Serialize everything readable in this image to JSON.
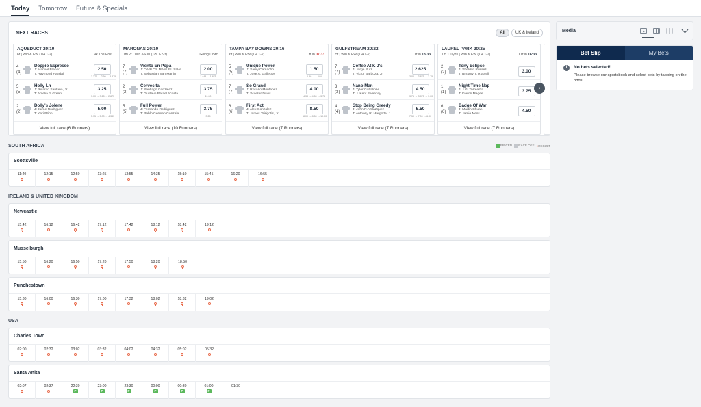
{
  "top_tabs": [
    "Today",
    "Tomorrow",
    "Future & Specials"
  ],
  "next_races": {
    "title": "NEXT RACES",
    "filters": [
      "All",
      "UK & Ireland"
    ],
    "view_full_prefix": "View full race",
    "races": [
      {
        "name": "AQUEDUCT 20:10",
        "info": "6f | Win & EW (1/4 1-2)",
        "status": "At The Post",
        "status_time": "",
        "view": "View full race (6 Runners)",
        "runners": [
          {
            "num": "4",
            "draw": "(4)",
            "name": "Doppio Espresso",
            "jockey": "J: Manuel Franco",
            "trainer": "T: Raymond Handal",
            "odds": "2.50",
            "hist": "3.375 → 2.50 → 3.375"
          },
          {
            "num": "5",
            "draw": "(5)",
            "name": "Holly Ln",
            "jockey": "J: Ricardo Santana, Jr.",
            "trainer": "T: Amelia J. Green",
            "odds": "3.25",
            "hist": "3.00 → 3.25 → 2.875"
          },
          {
            "num": "2",
            "draw": "(2)",
            "name": "Dolly's Jolene",
            "jockey": "J: Jaime Rodriguez",
            "trainer": "T: Keri Brion",
            "odds": "5.00",
            "hist": "5.75 → 5.00 → 4.333"
          }
        ]
      },
      {
        "name": "MARONAS 20:10",
        "info": "1m 2f | Win & EW (1/5 1-2-3)",
        "status": "Going Down",
        "status_time": "",
        "view": "View full race (10 Runners)",
        "runners": [
          {
            "num": "7",
            "draw": "(7)",
            "name": "Viento En Popa",
            "jockey": "J: CARLOS MANUEL SUAI",
            "trainer": "T: Sebastian San Martin",
            "odds": "2.00",
            "hist": "1.444 → 1.875"
          },
          {
            "num": "2",
            "draw": "(2)",
            "name": "Cervecita",
            "jockey": "J: Santiago Gonzalez",
            "trainer": "T: Gustavo Rafael Acosta",
            "odds": "3.75",
            "hist": "11.00"
          },
          {
            "num": "5",
            "draw": "(5)",
            "name": "Full Power",
            "jockey": "J: Fernando Rodriguez",
            "trainer": "T: Pablo German Gonzale",
            "odds": "3.75",
            "hist": "3.25"
          }
        ]
      },
      {
        "name": "TAMPA BAY DOWNS 20:16",
        "info": "6f | Win & EW (1/4 1-2)",
        "status": "Off in",
        "status_time": "07:33",
        "view": "View full race (7 Runners)",
        "runners": [
          {
            "num": "5",
            "draw": "(5)",
            "name": "Unique Power",
            "jockey": "J: Samy Camacho",
            "trainer": "T: Jose A. Gallegos",
            "odds": "1.50",
            "hist": "1.50 → 1.444"
          },
          {
            "num": "7",
            "draw": "(7)",
            "name": "So Grand",
            "jockey": "J: Rosario Montanez",
            "trainer": "T: Scooter Davis",
            "odds": "4.00",
            "hist": "4.33 → 4.50 → 3.75"
          },
          {
            "num": "6",
            "draw": "(6)",
            "name": "First Act",
            "jockey": "J: Alex Gonzalez",
            "trainer": "T: James Tsirigotis, Jr.",
            "odds": "8.50",
            "hist": "8.00 → 8.50 → 10.00"
          }
        ]
      },
      {
        "name": "GULFSTREAM 20:22",
        "info": "5f | Win & EW (1/4 1-2)",
        "status": "Off in",
        "status_time": "13:33",
        "view": "View full race (7 Runners)",
        "runners": [
          {
            "num": "7",
            "draw": "(7)",
            "name": "Coffee At K J's",
            "jockey": "J: Jorge Ruiz",
            "trainer": "T: Victor Barboza, Jr.",
            "odds": "2.625",
            "hist": "3.00 → 3.875 → 2.75"
          },
          {
            "num": "3",
            "draw": "(3)",
            "name": "Nano Man",
            "jockey": "J: Tyler Gaffalione",
            "trainer": "T: J. Kent Sweezey",
            "odds": "4.50",
            "hist": "3.75 → 3.875 → 3.00"
          },
          {
            "num": "4",
            "draw": "(4)",
            "name": "Stop Being Greedy",
            "jockey": "J: John R. Velazquez",
            "trainer": "T: Anthony R. Margotta, J",
            "odds": "5.50",
            "hist": "7.50 → 7.00 → 6.00"
          }
        ]
      },
      {
        "name": "LAUREL PARK 20:25",
        "info": "1m 110yds | Win & EW (1/4 1-2)",
        "status": "Off in",
        "status_time": "16:33",
        "view": "View full race (7 Runners)",
        "runners": [
          {
            "num": "2",
            "draw": "(2)",
            "name": "Tony Eclipse",
            "jockey": "J: Sheldon Russell",
            "trainer": "T: Brittany T. Russell",
            "odds": "3.00",
            "hist": ""
          },
          {
            "num": "1",
            "draw": "(1)",
            "name": "Night Time Nap",
            "jockey": "J: J.G. Torrealba",
            "trainer": "T: Kieron Magee",
            "odds": "3.75",
            "hist": ""
          },
          {
            "num": "6",
            "draw": "(6)",
            "name": "Badge Of War",
            "jockey": "J: Martin Chuan",
            "trainer": "T: Jamie Ness",
            "odds": "4.50",
            "hist": ""
          }
        ]
      }
    ]
  },
  "legend": {
    "priced": "PRICED",
    "race_off": "RACE OFF",
    "result": "RESULT"
  },
  "regions": [
    {
      "name": "SOUTH AFRICA",
      "show_legend": true,
      "meetings": [
        {
          "name": "Scottsville",
          "times": [
            {
              "t": "11:40",
              "s": "pin"
            },
            {
              "t": "12:15",
              "s": "pin"
            },
            {
              "t": "12:50",
              "s": "pin"
            },
            {
              "t": "13:25",
              "s": "pin"
            },
            {
              "t": "13:55",
              "s": "pin"
            },
            {
              "t": "14:35",
              "s": "pin"
            },
            {
              "t": "15:10",
              "s": "pin"
            },
            {
              "t": "15:45",
              "s": "pin"
            },
            {
              "t": "16:20",
              "s": "pin"
            },
            {
              "t": "16:55",
              "s": "pin"
            }
          ]
        }
      ]
    },
    {
      "name": "IRELAND & UNITED KINGDOM",
      "show_legend": false,
      "meetings": [
        {
          "name": "Newcastle",
          "times": [
            {
              "t": "15:42",
              "s": "pin"
            },
            {
              "t": "16:12",
              "s": "pin"
            },
            {
              "t": "16:42",
              "s": "pin"
            },
            {
              "t": "17:12",
              "s": "pin"
            },
            {
              "t": "17:42",
              "s": "pin"
            },
            {
              "t": "18:12",
              "s": "pin"
            },
            {
              "t": "18:42",
              "s": "pin"
            },
            {
              "t": "19:12",
              "s": "pin"
            }
          ]
        },
        {
          "name": "Musselburgh",
          "times": [
            {
              "t": "15:50",
              "s": "pin"
            },
            {
              "t": "16:20",
              "s": "pin"
            },
            {
              "t": "16:50",
              "s": "pin"
            },
            {
              "t": "17:20",
              "s": "pin"
            },
            {
              "t": "17:50",
              "s": "pin"
            },
            {
              "t": "18:20",
              "s": "pin"
            },
            {
              "t": "18:50",
              "s": "pin"
            }
          ]
        },
        {
          "name": "Punchestown",
          "times": [
            {
              "t": "15:30",
              "s": "pin"
            },
            {
              "t": "16:00",
              "s": "pin"
            },
            {
              "t": "16:30",
              "s": "pin"
            },
            {
              "t": "17:00",
              "s": "pin"
            },
            {
              "t": "17:32",
              "s": "pin"
            },
            {
              "t": "18:02",
              "s": "pin"
            },
            {
              "t": "18:32",
              "s": "pin"
            },
            {
              "t": "19:02",
              "s": "pin"
            }
          ]
        }
      ]
    },
    {
      "name": "USA",
      "show_legend": false,
      "meetings": [
        {
          "name": "Charles Town",
          "times": [
            {
              "t": "02:00",
              "s": "pin"
            },
            {
              "t": "02:32",
              "s": "pin"
            },
            {
              "t": "03:02",
              "s": "pin"
            },
            {
              "t": "03:32",
              "s": "pin"
            },
            {
              "t": "04:02",
              "s": "pin"
            },
            {
              "t": "04:32",
              "s": "pin"
            },
            {
              "t": "05:02",
              "s": "pin"
            },
            {
              "t": "05:32",
              "s": "pin"
            }
          ]
        },
        {
          "name": "Santa Anita",
          "times": [
            {
              "t": "02:07",
              "s": "pin"
            },
            {
              "t": "02:37",
              "s": "pin"
            },
            {
              "t": "22:30",
              "s": "priced"
            },
            {
              "t": "23:00",
              "s": "priced"
            },
            {
              "t": "23:30",
              "s": "priced"
            },
            {
              "t": "00:00",
              "s": "priced"
            },
            {
              "t": "00:30",
              "s": "priced"
            },
            {
              "t": "01:00",
              "s": "priced"
            },
            {
              "t": "01:30",
              "s": "none"
            }
          ]
        }
      ]
    }
  ],
  "media": {
    "title": "Media"
  },
  "betslip": {
    "tabs": [
      "Bet Slip",
      "My Bets"
    ],
    "title": "No bets selected!",
    "text": "Please browse our sportsbook and select bets by tapping on the odds"
  },
  "priced_badge": "P"
}
